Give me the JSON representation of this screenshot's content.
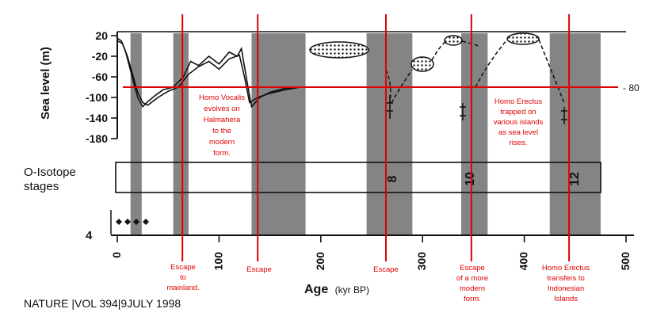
{
  "chart_data": {
    "type": "line",
    "xlabel": "Age",
    "xlabel_unit": "(kyr BP)",
    "ylabel": "Sea level (m)",
    "x_ticks": [
      "0",
      "100",
      "200",
      "300",
      "400",
      "500"
    ],
    "y_ticks": [
      "20",
      "-20",
      "-60",
      "-100",
      "-140",
      "-180"
    ],
    "xlim": [
      0,
      500
    ],
    "ylim": [
      -180,
      20
    ],
    "bottom_tick_label": "4",
    "isotope_label_line1": "O-Isotope",
    "isotope_label_line2": "stages",
    "isotope_stage_labels": [
      "8",
      "10",
      "12"
    ],
    "glacial_bands_kyr": [
      [
        13,
        24
      ],
      [
        55,
        70
      ],
      [
        132,
        185
      ],
      [
        245,
        290
      ],
      [
        338,
        364
      ],
      [
        425,
        475
      ]
    ],
    "sea_level_curve_1": {
      "x": [
        0,
        4,
        8,
        12,
        16,
        20,
        25,
        30,
        38,
        45,
        55,
        65,
        72,
        80,
        90,
        100,
        110,
        118,
        122,
        128,
        132,
        140,
        150,
        165,
        180,
        185
      ],
      "y": [
        15,
        10,
        -10,
        -40,
        -70,
        -100,
        -118,
        -108,
        -95,
        -85,
        -80,
        -60,
        -30,
        -38,
        -20,
        -35,
        -12,
        -20,
        -5,
        -75,
        -118,
        -100,
        -90,
        -82,
        -80,
        -80
      ]
    },
    "sea_level_curve_2": {
      "x": [
        0,
        5,
        10,
        15,
        20,
        25,
        30,
        40,
        50,
        60,
        70,
        80,
        90,
        100,
        110,
        120,
        125,
        130,
        138,
        150,
        165,
        180
      ],
      "y": [
        10,
        5,
        -20,
        -55,
        -90,
        -110,
        -115,
        -100,
        -88,
        -80,
        -55,
        -40,
        -30,
        -45,
        -25,
        -18,
        -60,
        -110,
        -100,
        -92,
        -85,
        -80
      ]
    },
    "reference_level": {
      "y": -80,
      "label": "- 80"
    },
    "red_markers_kyr": [
      64,
      138,
      264,
      348,
      444
    ]
  },
  "annotations": {
    "vocalis": [
      "Homo Vocalis",
      "evolves on",
      "Halmahera",
      "to the",
      "modern",
      "form."
    ],
    "erectus_trapped": [
      "Homo Erectus",
      "trapped on",
      "various islands",
      "as sea level",
      "rises."
    ],
    "escape_mainland": [
      "Escape",
      "to",
      "mainland."
    ],
    "escape_2": [
      "Escape"
    ],
    "escape_3": [
      "Escape"
    ],
    "escape_modern": [
      "Escape",
      "of a more",
      "modern",
      "form."
    ],
    "erectus_transfers": [
      "Homo Erectus",
      "transfers to",
      "Indonesian",
      "Islands"
    ]
  },
  "citation": "NATURE |VOL 394|9JULY 1998",
  "colors": {
    "annotation": "#e00000",
    "ink": "#111111",
    "band": "#6e6e6e",
    "paper": "#ffffff"
  }
}
